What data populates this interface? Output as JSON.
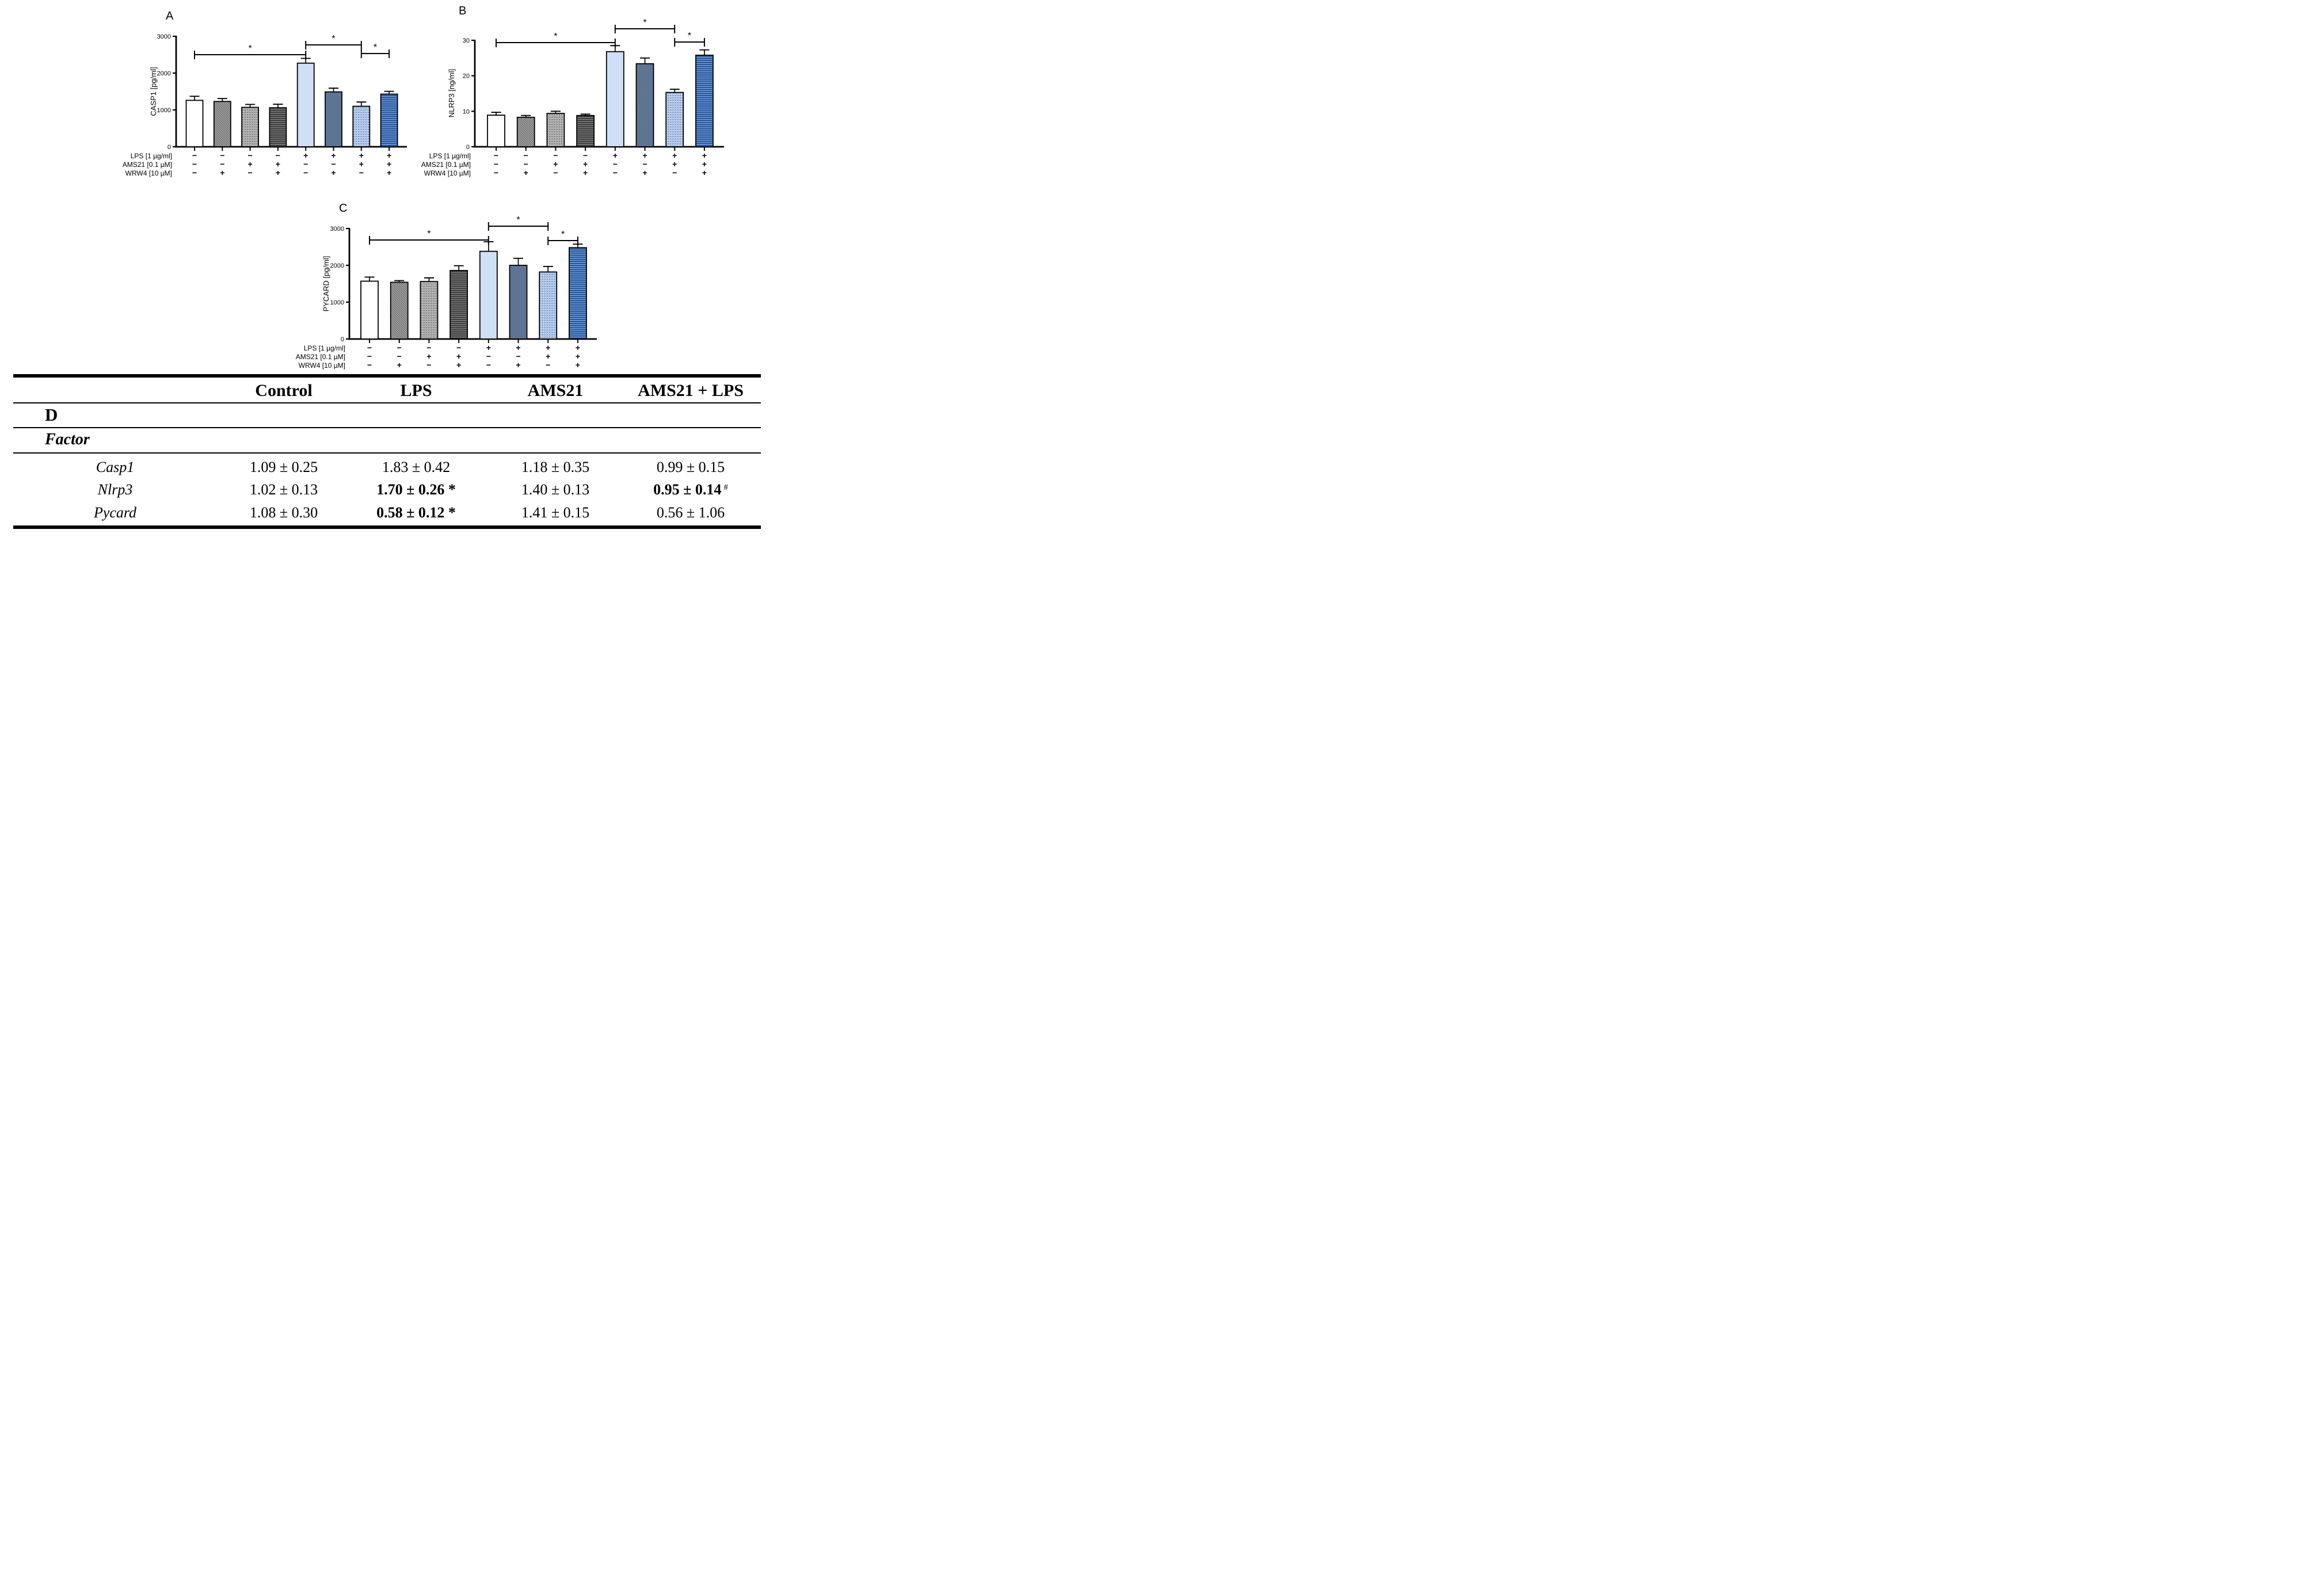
{
  "figure": {
    "panel_letters": [
      "A",
      "B",
      "C",
      "D"
    ]
  },
  "colors": {
    "black": "#000000",
    "bar_white": "#FFFFFF",
    "bar_gray_hatch_bg": "#EFEFEF",
    "bar_gray_hatch_fg": "#3C3C3C",
    "bar_gray_dot_bg": "#B3B3B3",
    "bar_gray_dot_fg": "#484848",
    "bar_gray_horiz_bg": "#747474",
    "bar_gray_horiz_fg": "#1E1E1E",
    "bar_light_blue": "#CFE0F6",
    "bar_blue_hatch_bg": "#A5C4EA",
    "bar_blue_hatch_fg": "#2A3C55",
    "bar_blue_dot_bg": "#B9CDEC",
    "bar_blue_dot_fg": "#3D5E97",
    "bar_blue_horiz_bg": "#5A96EC",
    "bar_blue_horiz_fg": "#1A2C42"
  },
  "chart_data": [
    {
      "type": "bar",
      "panel_label": "A",
      "ylabel": "CASP1 [pg/ml]",
      "ylim": [
        0,
        3000
      ],
      "yticks": [
        0,
        1000,
        2000,
        3000
      ],
      "values": [
        1260,
        1230,
        1070,
        1060,
        2270,
        1490,
        1100,
        1430
      ],
      "errors": [
        110,
        80,
        80,
        95,
        130,
        100,
        115,
        75
      ],
      "bar_patterns": [
        "solid-white",
        "diag-gray",
        "dot-gray",
        "horiz-gray",
        "solid-lightblue",
        "diag-blue",
        "dot-blue",
        "horiz-blue"
      ],
      "significance": [
        {
          "from": 1,
          "to": 5,
          "label": "*"
        },
        {
          "from": 5,
          "to": 7,
          "label": "*"
        },
        {
          "from": 7,
          "to": 8,
          "label": "*"
        }
      ],
      "treatments": [
        {
          "label": "LPS [1 µg/ml]",
          "signs": [
            "−",
            "−",
            "−",
            "−",
            "+",
            "+",
            "+",
            "+"
          ]
        },
        {
          "label": "AMS21 [0.1 µM]",
          "signs": [
            "−",
            "−",
            "+",
            "+",
            "−",
            "−",
            "+",
            "+"
          ]
        },
        {
          "label": "WRW4 [10 µM]",
          "signs": [
            "−",
            "+",
            "−",
            "+",
            "−",
            "+",
            "−",
            "+"
          ]
        }
      ]
    },
    {
      "type": "bar",
      "panel_label": "B",
      "ylabel": "NLRP3 [ng/ml]",
      "ylim": [
        0,
        30
      ],
      "yticks": [
        0,
        10,
        20,
        30
      ],
      "values": [
        8.9,
        8.3,
        9.4,
        8.8,
        26.8,
        23.4,
        15.3,
        25.8
      ],
      "errors": [
        0.8,
        0.5,
        0.6,
        0.4,
        1.7,
        1.6,
        0.9,
        1.5
      ],
      "bar_patterns": [
        "solid-white",
        "diag-gray",
        "dot-gray",
        "horiz-gray",
        "solid-lightblue",
        "diag-blue",
        "dot-blue",
        "horiz-blue"
      ],
      "significance": [
        {
          "from": 1,
          "to": 5,
          "label": "*"
        },
        {
          "from": 5,
          "to": 7,
          "label": "*"
        },
        {
          "from": 7,
          "to": 8,
          "label": "*"
        }
      ],
      "treatments": [
        {
          "label": "LPS [1 µg/ml]",
          "signs": [
            "−",
            "−",
            "−",
            "−",
            "+",
            "+",
            "+",
            "+"
          ]
        },
        {
          "label": "AMS21 [0.1 µM]",
          "signs": [
            "−",
            "−",
            "+",
            "+",
            "−",
            "−",
            "+",
            "+"
          ]
        },
        {
          "label": "WRW4 [10 µM]",
          "signs": [
            "−",
            "+",
            "−",
            "+",
            "−",
            "+",
            "−",
            "+"
          ]
        }
      ]
    },
    {
      "type": "bar",
      "panel_label": "C",
      "ylabel": "PYCARD [pg/ml]",
      "ylim": [
        0,
        3000
      ],
      "yticks": [
        0,
        1000,
        2000,
        3000
      ],
      "values": [
        1570,
        1540,
        1560,
        1860,
        2380,
        2000,
        1820,
        2480
      ],
      "errors": [
        110,
        45,
        100,
        130,
        260,
        190,
        150,
        95
      ],
      "bar_patterns": [
        "solid-white",
        "diag-gray",
        "dot-gray",
        "horiz-gray",
        "solid-lightblue",
        "diag-blue",
        "dot-blue",
        "horiz-blue"
      ],
      "significance": [
        {
          "from": 1,
          "to": 5,
          "label": "*"
        },
        {
          "from": 5,
          "to": 7,
          "label": "*"
        },
        {
          "from": 7,
          "to": 8,
          "label": "*"
        }
      ],
      "treatments": [
        {
          "label": "LPS [1 µg/ml]",
          "signs": [
            "−",
            "−",
            "−",
            "−",
            "+",
            "+",
            "+",
            "+"
          ]
        },
        {
          "label": "AMS21 [0.1 µM]",
          "signs": [
            "−",
            "−",
            "+",
            "+",
            "−",
            "−",
            "+",
            "+"
          ]
        },
        {
          "label": "WRW4 [10 µM]",
          "signs": [
            "−",
            "+",
            "−",
            "+",
            "−",
            "+",
            "−",
            "+"
          ]
        }
      ]
    }
  ],
  "table": {
    "section_label": "D",
    "factor_header": "Factor",
    "headers": [
      "Control",
      "LPS",
      "AMS21",
      "AMS21 + LPS"
    ],
    "rows": [
      {
        "factor": "Casp1",
        "control": "1.09 ± 0.25",
        "lps": "1.83 ± 0.42",
        "ams21": "1.18 ± 0.35",
        "ams21_lps": "0.99 ± 0.15",
        "ams21_lps_sup": ""
      },
      {
        "factor": "Nlrp3",
        "control": "1.02 ± 0.13",
        "lps": "1.70 ± 0.26 *",
        "ams21": "1.40 ± 0.13",
        "ams21_lps": "0.95 ± 0.14",
        "ams21_lps_sup": "#"
      },
      {
        "factor": "Pycard",
        "control": "1.08 ± 0.30",
        "lps": "0.58 ± 0.12 *",
        "ams21": "1.41 ± 0.15",
        "ams21_lps": "0.56 ± 1.06",
        "ams21_lps_sup": ""
      }
    ]
  }
}
